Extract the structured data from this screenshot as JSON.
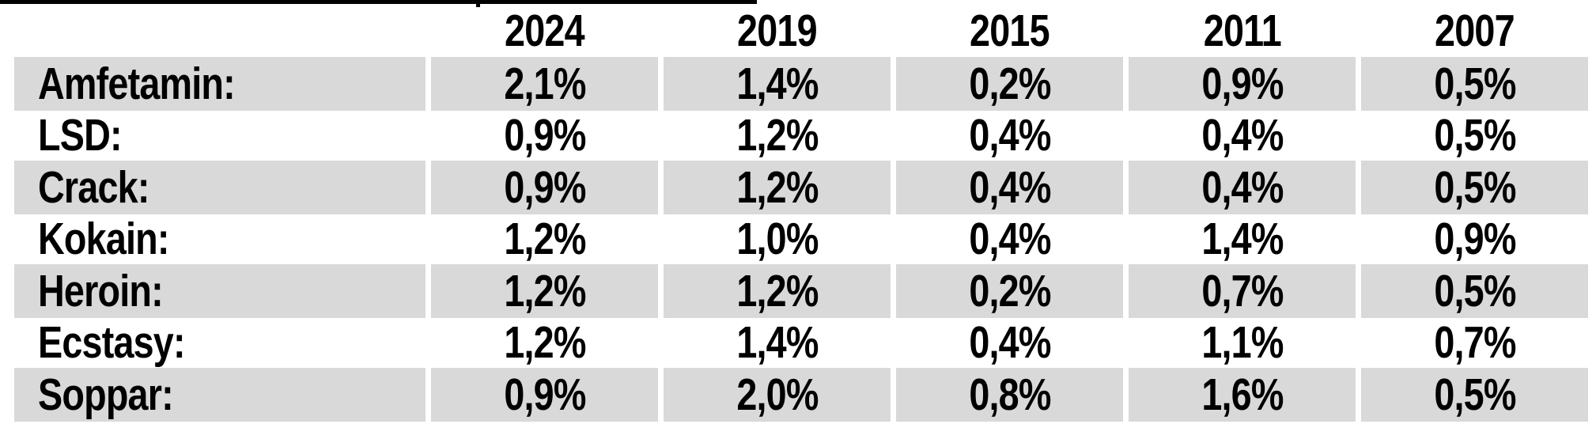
{
  "page": {
    "background_color": "#FFFFFF",
    "band_color": "#D9D9D9",
    "text_color": "#000000",
    "top_rule_color": "#000000"
  },
  "table": {
    "columns": [
      "2024",
      "2019",
      "2015",
      "2011",
      "2007"
    ],
    "rows": [
      {
        "label": "Amfetamin:",
        "values": [
          "2,1%",
          "1,4%",
          "0,2%",
          "0,9%",
          "0,5%"
        ]
      },
      {
        "label": "LSD:",
        "values": [
          "0,9%",
          "1,2%",
          "0,4%",
          "0,4%",
          "0,5%"
        ]
      },
      {
        "label": "Crack:",
        "values": [
          "0,9%",
          "1,2%",
          "0,4%",
          "0,4%",
          "0,5%"
        ]
      },
      {
        "label": "Kokain:",
        "values": [
          "1,2%",
          "1,0%",
          "0,4%",
          "1,4%",
          "0,9%"
        ]
      },
      {
        "label": "Heroin:",
        "values": [
          "1,2%",
          "1,2%",
          "0,2%",
          "0,7%",
          "0,5%"
        ]
      },
      {
        "label": "Ecstasy:",
        "values": [
          "1,2%",
          "1,4%",
          "0,4%",
          "1,1%",
          "0,7%"
        ]
      },
      {
        "label": "Soppar:",
        "values": [
          "0,9%",
          "2,0%",
          "0,8%",
          "1,6%",
          "0,5%"
        ]
      }
    ]
  },
  "chart_data": {
    "type": "table",
    "categories": [
      "2024",
      "2019",
      "2015",
      "2011",
      "2007"
    ],
    "series": [
      {
        "name": "Amfetamin",
        "values": [
          2.1,
          1.4,
          0.2,
          0.9,
          0.5
        ]
      },
      {
        "name": "LSD",
        "values": [
          0.9,
          1.2,
          0.4,
          0.4,
          0.5
        ]
      },
      {
        "name": "Crack",
        "values": [
          0.9,
          1.2,
          0.4,
          0.4,
          0.5
        ]
      },
      {
        "name": "Kokain",
        "values": [
          1.2,
          1.0,
          0.4,
          1.4,
          0.9
        ]
      },
      {
        "name": "Heroin",
        "values": [
          1.2,
          1.2,
          0.2,
          0.7,
          0.5
        ]
      },
      {
        "name": "Ecstasy",
        "values": [
          1.2,
          1.4,
          0.4,
          1.1,
          0.7
        ]
      },
      {
        "name": "Soppar",
        "values": [
          0.9,
          2.0,
          0.8,
          1.6,
          0.5
        ]
      }
    ],
    "title": "",
    "xlabel": "",
    "ylabel": "",
    "value_unit": "%",
    "value_format": "comma decimal separator",
    "layout": "rows = substances, columns = survey years, alternating gray row banding"
  }
}
